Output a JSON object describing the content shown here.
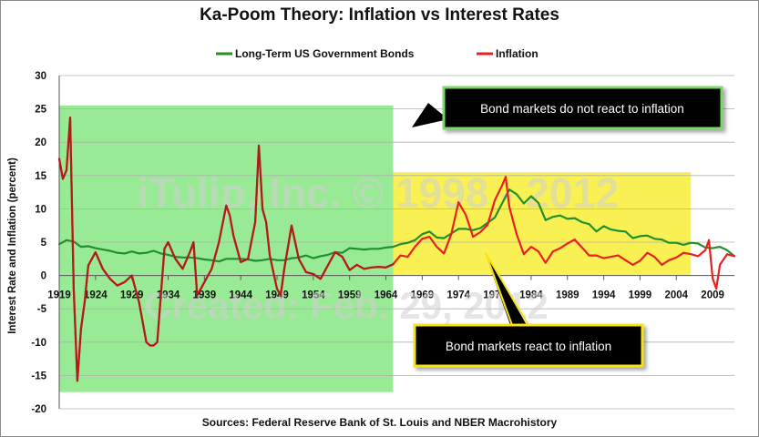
{
  "title": "Ka-Poom Theory: Inflation vs Interest Rates",
  "source": "Sources: Federal Reserve Bank of St. Louis and NBER Macrohistory",
  "watermark": {
    "line1": "iTulip, Inc. © 1998 - 2012",
    "line2": "Created: Feb. 29, 2012"
  },
  "chart_data": {
    "type": "line",
    "ylabel": "Interest Rate and Inflation (percent)",
    "xlabel": "",
    "xlim": [
      1919,
      2012
    ],
    "ylim": [
      -20,
      30
    ],
    "x_ticks": [
      "1919",
      "1924",
      "1929",
      "1934",
      "1939",
      "1944",
      "1949",
      "1954",
      "1959",
      "1964",
      "1969",
      "1974",
      "1979",
      "1984",
      "1989",
      "1994",
      "1999",
      "2004",
      "2009"
    ],
    "y_ticks": [
      -20,
      -15,
      -10,
      -5,
      0,
      5,
      10,
      15,
      20,
      25,
      30
    ],
    "grid": "horizontal",
    "legend_position": "top-center",
    "series": [
      {
        "name": "Long-Term US Government Bonds",
        "color": "#22902a",
        "x": [
          1919,
          1920,
          1921,
          1922,
          1923,
          1924,
          1925,
          1926,
          1927,
          1928,
          1929,
          1930,
          1931,
          1932,
          1933,
          1934,
          1935,
          1936,
          1937,
          1938,
          1939,
          1940,
          1941,
          1942,
          1943,
          1944,
          1945,
          1946,
          1947,
          1948,
          1949,
          1950,
          1951,
          1952,
          1953,
          1954,
          1955,
          1956,
          1957,
          1958,
          1959,
          1960,
          1961,
          1962,
          1963,
          1964,
          1965,
          1966,
          1967,
          1968,
          1969,
          1970,
          1971,
          1972,
          1973,
          1974,
          1975,
          1976,
          1977,
          1978,
          1979,
          1980,
          1981,
          1982,
          1983,
          1984,
          1985,
          1986,
          1987,
          1988,
          1989,
          1990,
          1991,
          1992,
          1993,
          1994,
          1995,
          1996,
          1997,
          1998,
          1999,
          2000,
          2001,
          2002,
          2003,
          2004,
          2005,
          2006,
          2007,
          2008,
          2009,
          2010,
          2011,
          2012
        ],
        "values": [
          4.7,
          5.3,
          5.1,
          4.3,
          4.4,
          4.1,
          3.9,
          3.7,
          3.4,
          3.3,
          3.6,
          3.3,
          3.4,
          3.7,
          3.3,
          3.1,
          2.8,
          2.7,
          2.7,
          2.6,
          2.4,
          2.3,
          2.1,
          2.5,
          2.5,
          2.5,
          2.4,
          2.2,
          2.3,
          2.5,
          2.3,
          2.3,
          2.6,
          2.7,
          3.0,
          2.6,
          2.9,
          3.1,
          3.5,
          3.4,
          4.1,
          4.0,
          3.9,
          4.0,
          4.0,
          4.2,
          4.3,
          4.7,
          4.9,
          5.3,
          6.2,
          6.6,
          5.7,
          5.6,
          6.3,
          7.0,
          7.0,
          6.8,
          7.1,
          7.9,
          8.7,
          10.8,
          12.9,
          12.2,
          10.8,
          11.9,
          10.9,
          8.3,
          8.8,
          9.0,
          8.5,
          8.6,
          8.0,
          7.7,
          6.6,
          7.4,
          6.9,
          6.7,
          6.6,
          5.6,
          5.9,
          6.0,
          5.5,
          5.4,
          4.9,
          4.9,
          4.6,
          4.9,
          4.8,
          4.2,
          4.1,
          4.3,
          3.8,
          2.9
        ]
      },
      {
        "name": "Inflation",
        "color": "#e82020",
        "x": [
          1919,
          1919.5,
          1920,
          1920.5,
          1921,
          1921.5,
          1922,
          1922.5,
          1923,
          1924,
          1925,
          1926,
          1927,
          1928,
          1929,
          1930,
          1930.5,
          1931,
          1931.5,
          1932,
          1932.5,
          1933,
          1933.5,
          1934,
          1935,
          1936,
          1937,
          1937.5,
          1938,
          1938.5,
          1939,
          1940,
          1941,
          1942,
          1942.5,
          1943,
          1944,
          1945,
          1946,
          1946.5,
          1947,
          1947.5,
          1948,
          1949,
          1949.5,
          1950,
          1951,
          1952,
          1953,
          1954,
          1955,
          1956,
          1957,
          1958,
          1959,
          1960,
          1961,
          1962,
          1963,
          1964,
          1965,
          1966,
          1967,
          1968,
          1969,
          1970,
          1971,
          1972,
          1973,
          1974,
          1975,
          1976,
          1977,
          1978,
          1979,
          1980,
          1980.5,
          1981,
          1982,
          1983,
          1984,
          1985,
          1986,
          1987,
          1988,
          1989,
          1990,
          1991,
          1992,
          1993,
          1994,
          1995,
          1996,
          1997,
          1998,
          1999,
          2000,
          2001,
          2002,
          2003,
          2004,
          2005,
          2006,
          2007,
          2008,
          2008.5,
          2009,
          2009.5,
          2010,
          2011,
          2012
        ],
        "values": [
          17.5,
          14.5,
          15.8,
          23.7,
          -2.0,
          -15.8,
          -8.0,
          -4.0,
          1.5,
          3.5,
          1.0,
          -0.5,
          -1.5,
          -1.0,
          0.0,
          -4.0,
          -7.0,
          -10.0,
          -10.5,
          -10.5,
          -10.0,
          -3.0,
          4.0,
          5.0,
          2.5,
          1.0,
          3.5,
          5.0,
          -3.0,
          -2.0,
          -1.0,
          1.0,
          5.0,
          10.5,
          9.0,
          6.0,
          2.0,
          2.5,
          8.0,
          19.5,
          10.0,
          8.0,
          3.0,
          -2.0,
          -3.0,
          1.0,
          7.5,
          2.5,
          0.5,
          0.2,
          -0.5,
          1.5,
          3.5,
          2.8,
          0.8,
          1.6,
          1.0,
          1.2,
          1.3,
          1.2,
          1.7,
          3.0,
          2.8,
          4.3,
          5.5,
          5.8,
          4.3,
          3.3,
          6.2,
          11.0,
          9.1,
          5.8,
          6.5,
          7.6,
          11.3,
          13.5,
          14.8,
          10.3,
          6.2,
          3.2,
          4.3,
          3.6,
          1.9,
          3.6,
          4.1,
          4.8,
          5.4,
          4.2,
          3.0,
          3.0,
          2.6,
          2.8,
          3.0,
          2.3,
          1.6,
          2.2,
          3.4,
          2.8,
          1.6,
          2.3,
          2.7,
          3.4,
          3.2,
          2.9,
          3.8,
          5.3,
          -0.4,
          -2.0,
          1.6,
          3.2,
          2.9
        ]
      }
    ],
    "annotations": [
      {
        "text": "Bond markets do not react to inflation",
        "x_range": [
          1919,
          1965
        ],
        "y_range": [
          -17.5,
          25.5
        ],
        "color": "#8ee888"
      },
      {
        "text": "Bond markets react to inflation",
        "x_range": [
          1965,
          2006
        ],
        "y_range": [
          0,
          15.5
        ],
        "color": "#f8f040"
      }
    ]
  }
}
